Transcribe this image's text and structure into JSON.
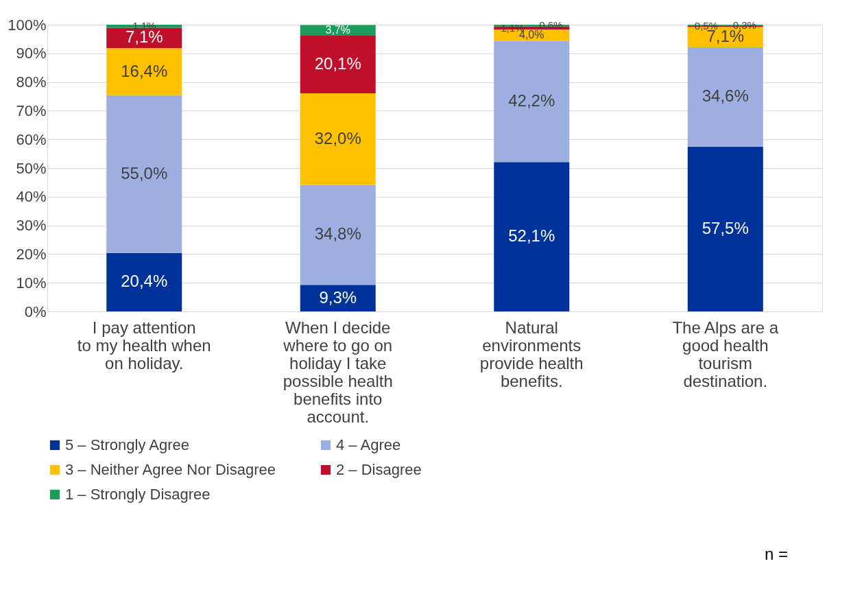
{
  "chart_data": {
    "type": "bar",
    "stacked": true,
    "data_labels": false,
    "categories": [
      "I pay attention to my health when on holiday.",
      "When I decide where to go on holiday I take possible health benefits into account.",
      "Natural environments provide health benefits.",
      "The Alps are a good health tourism destination."
    ],
    "series": [
      {
        "name": "5 – Strongly Agree",
        "color": "#003399",
        "values": [
          20.4,
          9.3,
          52.1,
          57.5
        ],
        "value_labels": [
          "20,4%",
          "9,3%",
          "52,1%",
          "57,5%"
        ]
      },
      {
        "name": "4 – Agree",
        "color": "#9daee0",
        "values": [
          55.0,
          34.8,
          42.2,
          34.6
        ],
        "value_labels": [
          "55,0%",
          "34,8%",
          "42,2%",
          "34,6%"
        ]
      },
      {
        "name": "3 – Neither Agree Nor Disagree",
        "color": "#ffc000",
        "values": [
          16.4,
          32.0,
          4.0,
          7.1
        ],
        "value_labels": [
          "16,4%",
          "32,0%",
          "4,0%",
          "7,1%"
        ]
      },
      {
        "name": "2 – Disagree",
        "color": "#c00f2a",
        "values": [
          7.1,
          20.1,
          1.1,
          0.5
        ],
        "value_labels": [
          "7,1%",
          "20,1%",
          "1,1%",
          "0,5%"
        ]
      },
      {
        "name": "1 – Strongly Disagree",
        "color": "#1a9c5a",
        "values": [
          1.1,
          3.7,
          0.6,
          0.3
        ],
        "value_labels": [
          "1,1%",
          "3,7%",
          "0,6%",
          "0,3%"
        ]
      }
    ],
    "ylim": [
      0,
      100
    ],
    "yticks": [
      {
        "value": 0,
        "label": "0%"
      },
      {
        "value": 10,
        "label": "10%"
      },
      {
        "value": 20,
        "label": "20%"
      },
      {
        "value": 30,
        "label": "30%"
      },
      {
        "value": 40,
        "label": "40%"
      },
      {
        "value": 50,
        "label": "50%"
      },
      {
        "value": 60,
        "label": "60%"
      },
      {
        "value": 70,
        "label": "70%"
      },
      {
        "value": 80,
        "label": "80%"
      },
      {
        "value": 90,
        "label": "90%"
      },
      {
        "value": 100,
        "label": "100%"
      }
    ],
    "grid": "y",
    "legend": "bottom",
    "annotations": [
      "n ="
    ]
  }
}
